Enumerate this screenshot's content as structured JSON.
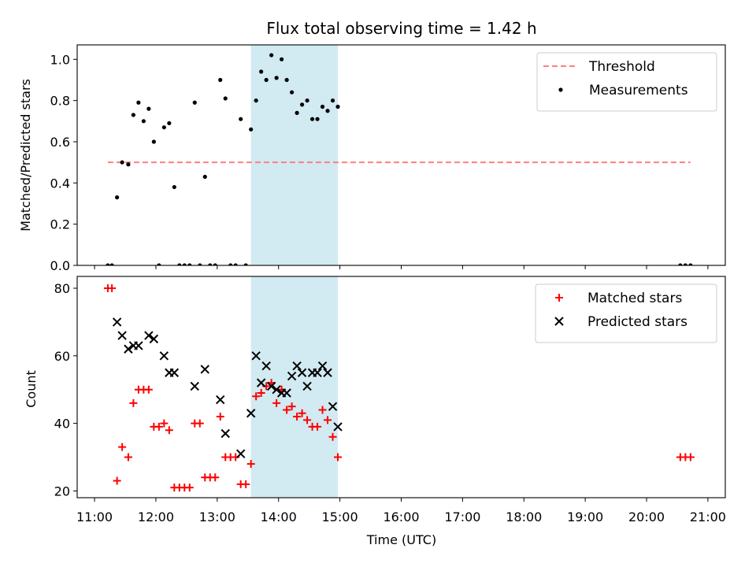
{
  "chart_data": {
    "title": "Flux total observing time = 1.42 h",
    "xlabel": "Time (UTC)",
    "xlim": [
      "11:00",
      "21:00"
    ],
    "x_ticks": [
      "11:00",
      "12:00",
      "13:00",
      "14:00",
      "15:00",
      "16:00",
      "17:00",
      "18:00",
      "19:00",
      "20:00",
      "21:00"
    ],
    "observing_window": {
      "start": "13:33",
      "end": "14:58",
      "color": "#add8e6"
    },
    "panels": [
      {
        "type": "scatter",
        "ylabel": "Matched/Predicted stars",
        "ylim": [
          0,
          1.07
        ],
        "y_ticks": [
          "0.0",
          "0.2",
          "0.4",
          "0.6",
          "0.8",
          "1.0"
        ],
        "legend": "top-right",
        "series": [
          {
            "name": "Threshold",
            "style": "dashed-line",
            "color": "#ff7f7f",
            "x": [
              "11:13",
              "20:43"
            ],
            "y": [
              0.5,
              0.5
            ]
          },
          {
            "name": "Measurements",
            "style": "dot",
            "color": "#000000",
            "x": [
              "11:13",
              "11:17",
              "11:22",
              "11:27",
              "11:33",
              "11:38",
              "11:43",
              "11:48",
              "11:53",
              "11:58",
              "12:03",
              "12:08",
              "12:13",
              "12:18",
              "12:23",
              "12:28",
              "12:33",
              "12:38",
              "12:43",
              "12:48",
              "12:53",
              "12:58",
              "13:03",
              "13:08",
              "13:13",
              "13:18",
              "13:23",
              "13:28",
              "13:33",
              "13:38",
              "13:43",
              "13:48",
              "13:53",
              "13:58",
              "14:03",
              "14:08",
              "14:13",
              "14:18",
              "14:23",
              "14:28",
              "14:33",
              "14:38",
              "14:43",
              "14:48",
              "14:53",
              "14:58",
              "20:33",
              "20:38",
              "20:43"
            ],
            "y": [
              0.0,
              0.0,
              0.33,
              0.5,
              0.49,
              0.73,
              0.79,
              0.7,
              0.76,
              0.6,
              0.0,
              0.67,
              0.69,
              0.38,
              0.0,
              0.0,
              0.0,
              0.79,
              0.0,
              0.43,
              0.0,
              0.0,
              0.9,
              0.81,
              0.0,
              0.0,
              0.71,
              0.0,
              0.66,
              0.8,
              0.94,
              0.9,
              1.02,
              0.91,
              1.0,
              0.9,
              0.84,
              0.74,
              0.78,
              0.8,
              0.71,
              0.71,
              0.77,
              0.75,
              0.8,
              0.77,
              0.0,
              0.0,
              0.0
            ]
          }
        ]
      },
      {
        "type": "scatter",
        "ylabel": "Count",
        "ylim": [
          18,
          83.5
        ],
        "y_ticks": [
          "20",
          "40",
          "60",
          "80"
        ],
        "legend": "top-right",
        "series": [
          {
            "name": "Matched stars",
            "style": "plus",
            "color": "#ff0000",
            "x": [
              "11:13",
              "11:17",
              "11:22",
              "11:27",
              "11:33",
              "11:38",
              "11:43",
              "11:48",
              "11:53",
              "11:58",
              "12:03",
              "12:08",
              "12:13",
              "12:18",
              "12:23",
              "12:28",
              "12:33",
              "12:38",
              "12:43",
              "12:48",
              "12:53",
              "12:58",
              "13:03",
              "13:08",
              "13:13",
              "13:18",
              "13:23",
              "13:28",
              "13:33",
              "13:38",
              "13:43",
              "13:48",
              "13:53",
              "13:58",
              "14:03",
              "14:08",
              "14:13",
              "14:18",
              "14:23",
              "14:28",
              "14:33",
              "14:38",
              "14:43",
              "14:48",
              "14:53",
              "14:58",
              "20:33",
              "20:38",
              "20:43"
            ],
            "y": [
              80,
              80,
              23,
              33,
              30,
              46,
              50,
              50,
              50,
              39,
              39,
              40,
              38,
              21,
              21,
              21,
              21,
              40,
              40,
              24,
              24,
              24,
              42,
              30,
              30,
              30,
              22,
              22,
              28,
              48,
              49,
              51,
              52,
              46,
              50,
              44,
              45,
              42,
              43,
              41,
              39,
              39,
              44,
              41,
              36,
              30,
              30,
              30,
              30
            ]
          },
          {
            "name": "Predicted stars",
            "style": "x",
            "color": "#000000",
            "x": [
              "11:22",
              "11:27",
              "11:33",
              "11:38",
              "11:43",
              "11:53",
              "11:58",
              "12:08",
              "12:13",
              "12:18",
              "12:38",
              "12:48",
              "13:03",
              "13:08",
              "13:23",
              "13:33",
              "13:38",
              "13:43",
              "13:48",
              "13:53",
              "13:58",
              "14:03",
              "14:08",
              "14:13",
              "14:18",
              "14:23",
              "14:28",
              "14:33",
              "14:38",
              "14:43",
              "14:48",
              "14:53",
              "14:58"
            ],
            "y": [
              70,
              66,
              62,
              63,
              63,
              66,
              65,
              60,
              55,
              55,
              51,
              56,
              47,
              37,
              31,
              43,
              60,
              52,
              57,
              51,
              50,
              49,
              49,
              54,
              57,
              55,
              51,
              55,
              55,
              57,
              55,
              45,
              39
            ]
          }
        ]
      }
    ]
  }
}
